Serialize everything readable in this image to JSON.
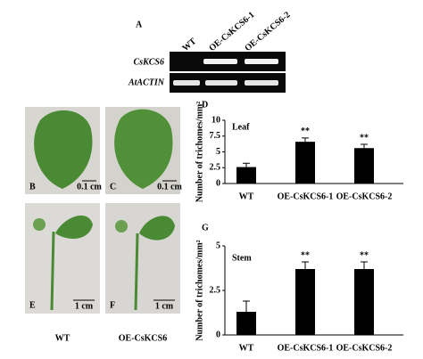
{
  "gel": {
    "label": "A",
    "lanes": [
      "WT",
      "OE-CsKCS6-1",
      "OE-CsKCS6-2"
    ],
    "rows": [
      "CsKCS6",
      "AtACTIN"
    ]
  },
  "photos": {
    "leaf_labels": [
      "B",
      "C"
    ],
    "leaf_scales": [
      "0.1 cm",
      "0.1 cm"
    ],
    "stem_labels": [
      "E",
      "F"
    ],
    "stem_scales": [
      "1 cm",
      "1 cm"
    ],
    "genotypes": [
      "WT",
      "OE-CsKCS6"
    ]
  },
  "chart_panel_labels": [
    "D",
    "G"
  ],
  "chart_data": [
    {
      "type": "bar",
      "title": "Leaf",
      "y_label": "Number of trichomes/mm²",
      "categories": [
        "WT",
        "OE-CsKCS6-1",
        "OE-CsKCS6-2"
      ],
      "values": [
        2.6,
        6.6,
        5.6
      ],
      "errors": [
        0.6,
        0.6,
        0.6
      ],
      "significance": [
        null,
        "**",
        "**"
      ],
      "color": "#000000",
      "ylim": [
        0,
        10
      ],
      "yticks": [
        0,
        2.5,
        5,
        7.5,
        10
      ]
    },
    {
      "type": "bar",
      "title": "Stem",
      "y_label": "Number of trichomes/mm²",
      "categories": [
        "WT",
        "OE-CsKCS6-1",
        "OE-CsKCS6-2"
      ],
      "values": [
        1.3,
        3.7,
        3.7
      ],
      "errors": [
        0.6,
        0.4,
        0.4
      ],
      "significance": [
        null,
        "**",
        "**"
      ],
      "color": "#000000",
      "ylim": [
        0,
        5
      ],
      "yticks": [
        0,
        2.5,
        5
      ]
    }
  ]
}
